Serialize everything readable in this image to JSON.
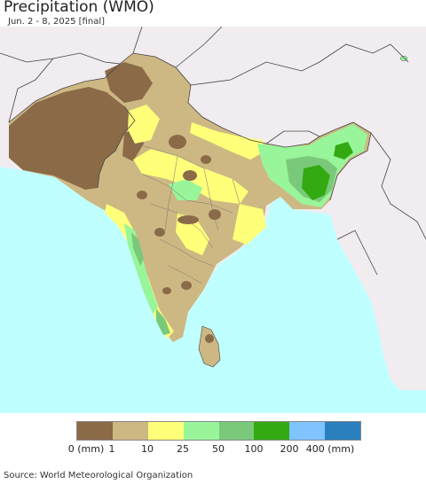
{
  "header": {
    "title": "Precipitation (WMO)",
    "subtitle": "Jun. 2 - 8, 2025 [final]"
  },
  "legend": {
    "colors": [
      "#8b6a48",
      "#cdb883",
      "#ffff7a",
      "#98f59a",
      "#7ac97a",
      "#33aa11",
      "#7fc4ff",
      "#2a7fbf"
    ],
    "ticks": [
      "0 (mm)",
      "1",
      "10",
      "25",
      "50",
      "100",
      "200",
      "400 (mm)"
    ]
  },
  "colors": {
    "ocean": "#c0ffff",
    "outside_land": "#f0ecef",
    "border": "#444444"
  },
  "footer": {
    "source": "Source: World Meteorological Organization"
  }
}
